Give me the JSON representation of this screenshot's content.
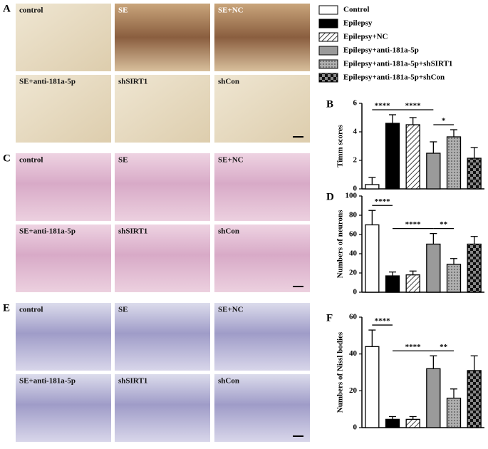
{
  "panels": [
    {
      "letter": "A",
      "images": [
        "control",
        "SE",
        "SE+NC",
        "SE+anti-181a-5p",
        "shSIRT1",
        "shCon"
      ]
    },
    {
      "letter": "C",
      "images": [
        "control",
        "SE",
        "SE+NC",
        "SE+anti-181a-5p",
        "shSIRT1",
        "shCon"
      ]
    },
    {
      "letter": "E",
      "images": [
        "control",
        "SE",
        "SE+NC",
        "SE+anti-181a-5p",
        "shSIRT1",
        "shCon"
      ]
    }
  ],
  "legend": {
    "names": [
      "Control",
      "Epilepsy",
      "Epilepsy+NC",
      "Epilepsy+anti-181a-5p",
      "Epilepsy+anti-181a-5p+shSIRT1",
      "Epilepsy+anti-181a-5p+shCon"
    ],
    "fills": [
      "#ffffff",
      "#000000",
      "hatch",
      "#9a9a9a",
      "dots",
      "checker"
    ]
  },
  "chart_data": [
    {
      "type": "bar",
      "panel": "B",
      "y_label": "Timm scores",
      "categories": [
        null,
        null,
        null,
        null,
        null,
        null
      ],
      "values": [
        0.3,
        4.6,
        4.5,
        2.5,
        3.65,
        2.15
      ],
      "errors": [
        0.5,
        0.6,
        0.5,
        0.8,
        0.5,
        0.75
      ],
      "ylim": [
        0,
        6
      ],
      "yticks": [
        0,
        2,
        4,
        6
      ],
      "annotations": [
        "****",
        "****",
        "*"
      ]
    },
    {
      "type": "bar",
      "panel": "D",
      "y_label": "Numbers of neurons",
      "categories": [
        null,
        null,
        null,
        null,
        null,
        null
      ],
      "values": [
        70,
        17,
        18,
        50,
        29,
        50
      ],
      "errors": [
        15,
        4,
        4,
        11,
        6,
        8
      ],
      "ylim": [
        0,
        100
      ],
      "yticks": [
        0,
        20,
        40,
        60,
        80,
        100
      ],
      "annotations": [
        "****",
        "****",
        "**"
      ]
    },
    {
      "type": "bar",
      "panel": "F",
      "y_label": "Numbers of Nissl bodies",
      "categories": [
        null,
        null,
        null,
        null,
        null,
        null
      ],
      "values": [
        44,
        4.5,
        4.5,
        32,
        16,
        31
      ],
      "errors": [
        9,
        1.5,
        1.5,
        7,
        5,
        8
      ],
      "ylim": [
        0,
        60
      ],
      "yticks": [
        0,
        20,
        40,
        60
      ],
      "annotations": [
        "****",
        "****",
        "**"
      ]
    }
  ]
}
